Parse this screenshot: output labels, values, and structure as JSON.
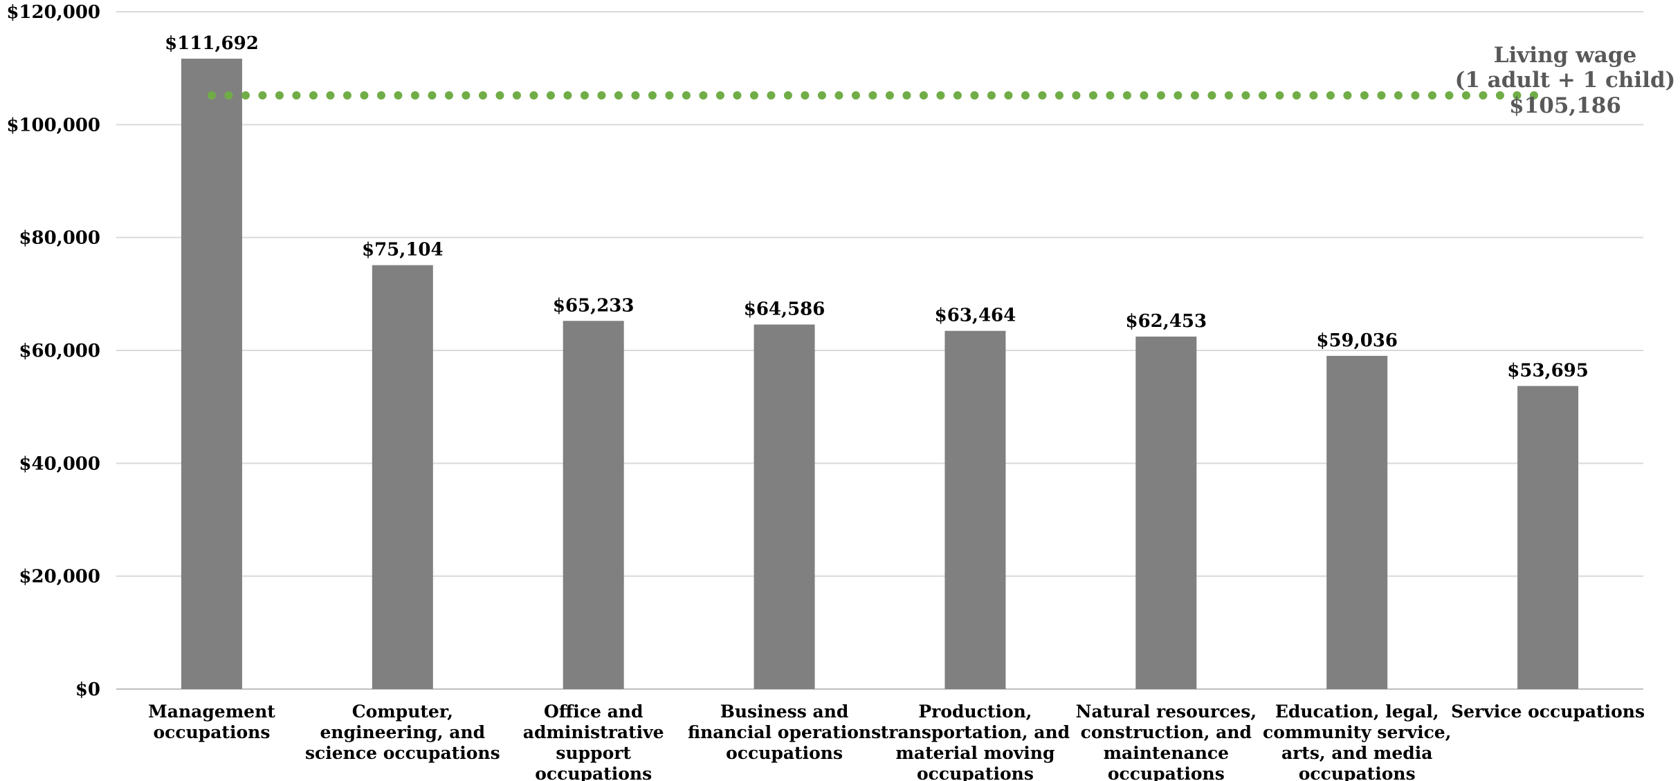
{
  "chart_data": {
    "type": "bar",
    "categories": [
      [
        "Management",
        "occupations"
      ],
      [
        "Computer,",
        "engineering, and",
        "science occupations"
      ],
      [
        "Office and",
        "administrative",
        "support",
        "occupations"
      ],
      [
        "Business and",
        "financial operations",
        "occupations"
      ],
      [
        "Production,",
        "transportation, and",
        "material moving",
        "occupations"
      ],
      [
        "Natural resources,",
        "construction, and",
        "maintenance",
        "occupations"
      ],
      [
        "Education, legal,",
        "community service,",
        "arts, and media",
        "occupations"
      ],
      [
        "Service occupations"
      ]
    ],
    "values": [
      111692,
      75104,
      65233,
      64586,
      63464,
      62453,
      59036,
      53695
    ],
    "data_labels": [
      "$111,692",
      "$75,104",
      "$65,233",
      "$64,586",
      "$63,464",
      "$62,453",
      "$59,036",
      "$53,695"
    ],
    "ylim": [
      0,
      120000
    ],
    "y_ticks": [
      0,
      20000,
      40000,
      60000,
      80000,
      100000,
      120000
    ],
    "y_tick_labels": [
      "$0",
      "$20,000",
      "$40,000",
      "$60,000",
      "$80,000",
      "$100,000",
      "$120,000"
    ],
    "grid": true,
    "bar_color": "#808080",
    "reference_line": {
      "value": 105186,
      "label_lines": [
        "Living wage",
        "(1 adult + 1 child)",
        "$105,186"
      ],
      "color": "#70AD47",
      "style": "dotted"
    }
  }
}
